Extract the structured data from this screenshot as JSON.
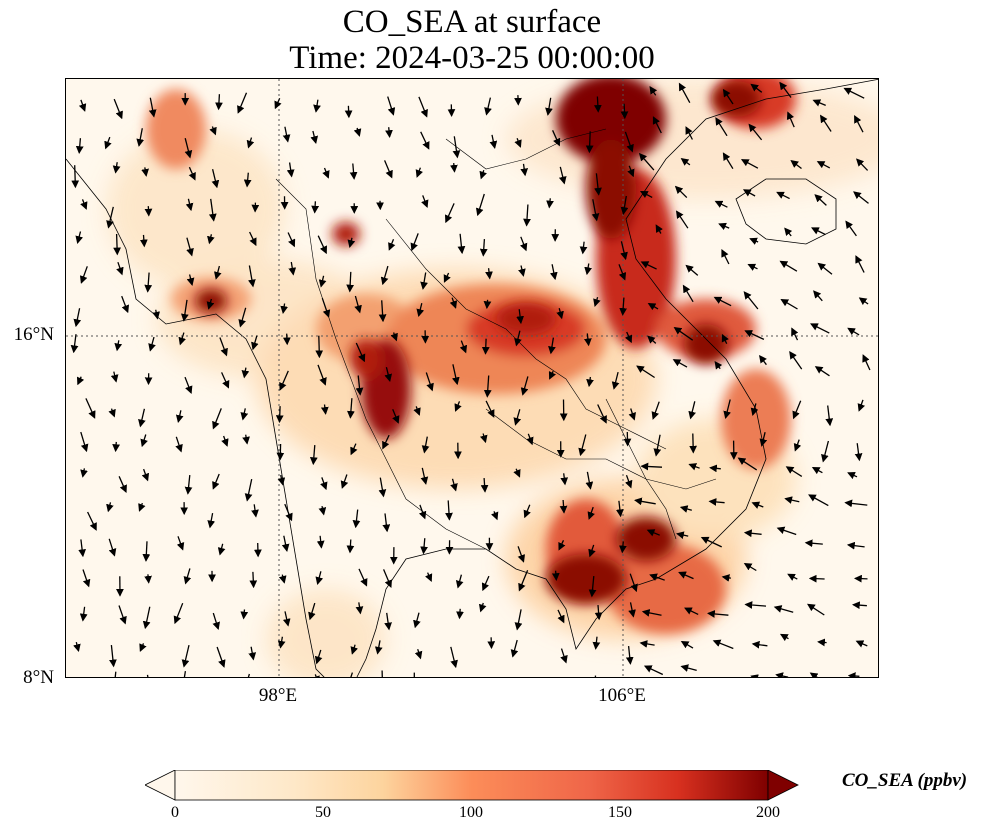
{
  "title": {
    "line1": "CO_SEA at surface",
    "line2": "Time: 2024-03-25 00:00:00"
  },
  "map": {
    "region": "Southeast Asia (Indochina)",
    "colormap": "OrRd",
    "colors": {
      "low": "#fff7ec",
      "mid_low": "#fdd49e",
      "mid": "#fc8d59",
      "high": "#d7301f",
      "max": "#7f0000",
      "background": "#fff8ed"
    },
    "latitude_labels": [
      "16°N",
      "8°N"
    ],
    "longitude_labels": [
      "98°E",
      "106°E"
    ],
    "gridlines": "dotted",
    "wind_vectors": true
  },
  "colorbar": {
    "min": 0,
    "max": 200,
    "ticks": [
      "0",
      "50",
      "100",
      "150",
      "200"
    ],
    "label": "CO_SEA (ppbv)",
    "extend": "both"
  }
}
